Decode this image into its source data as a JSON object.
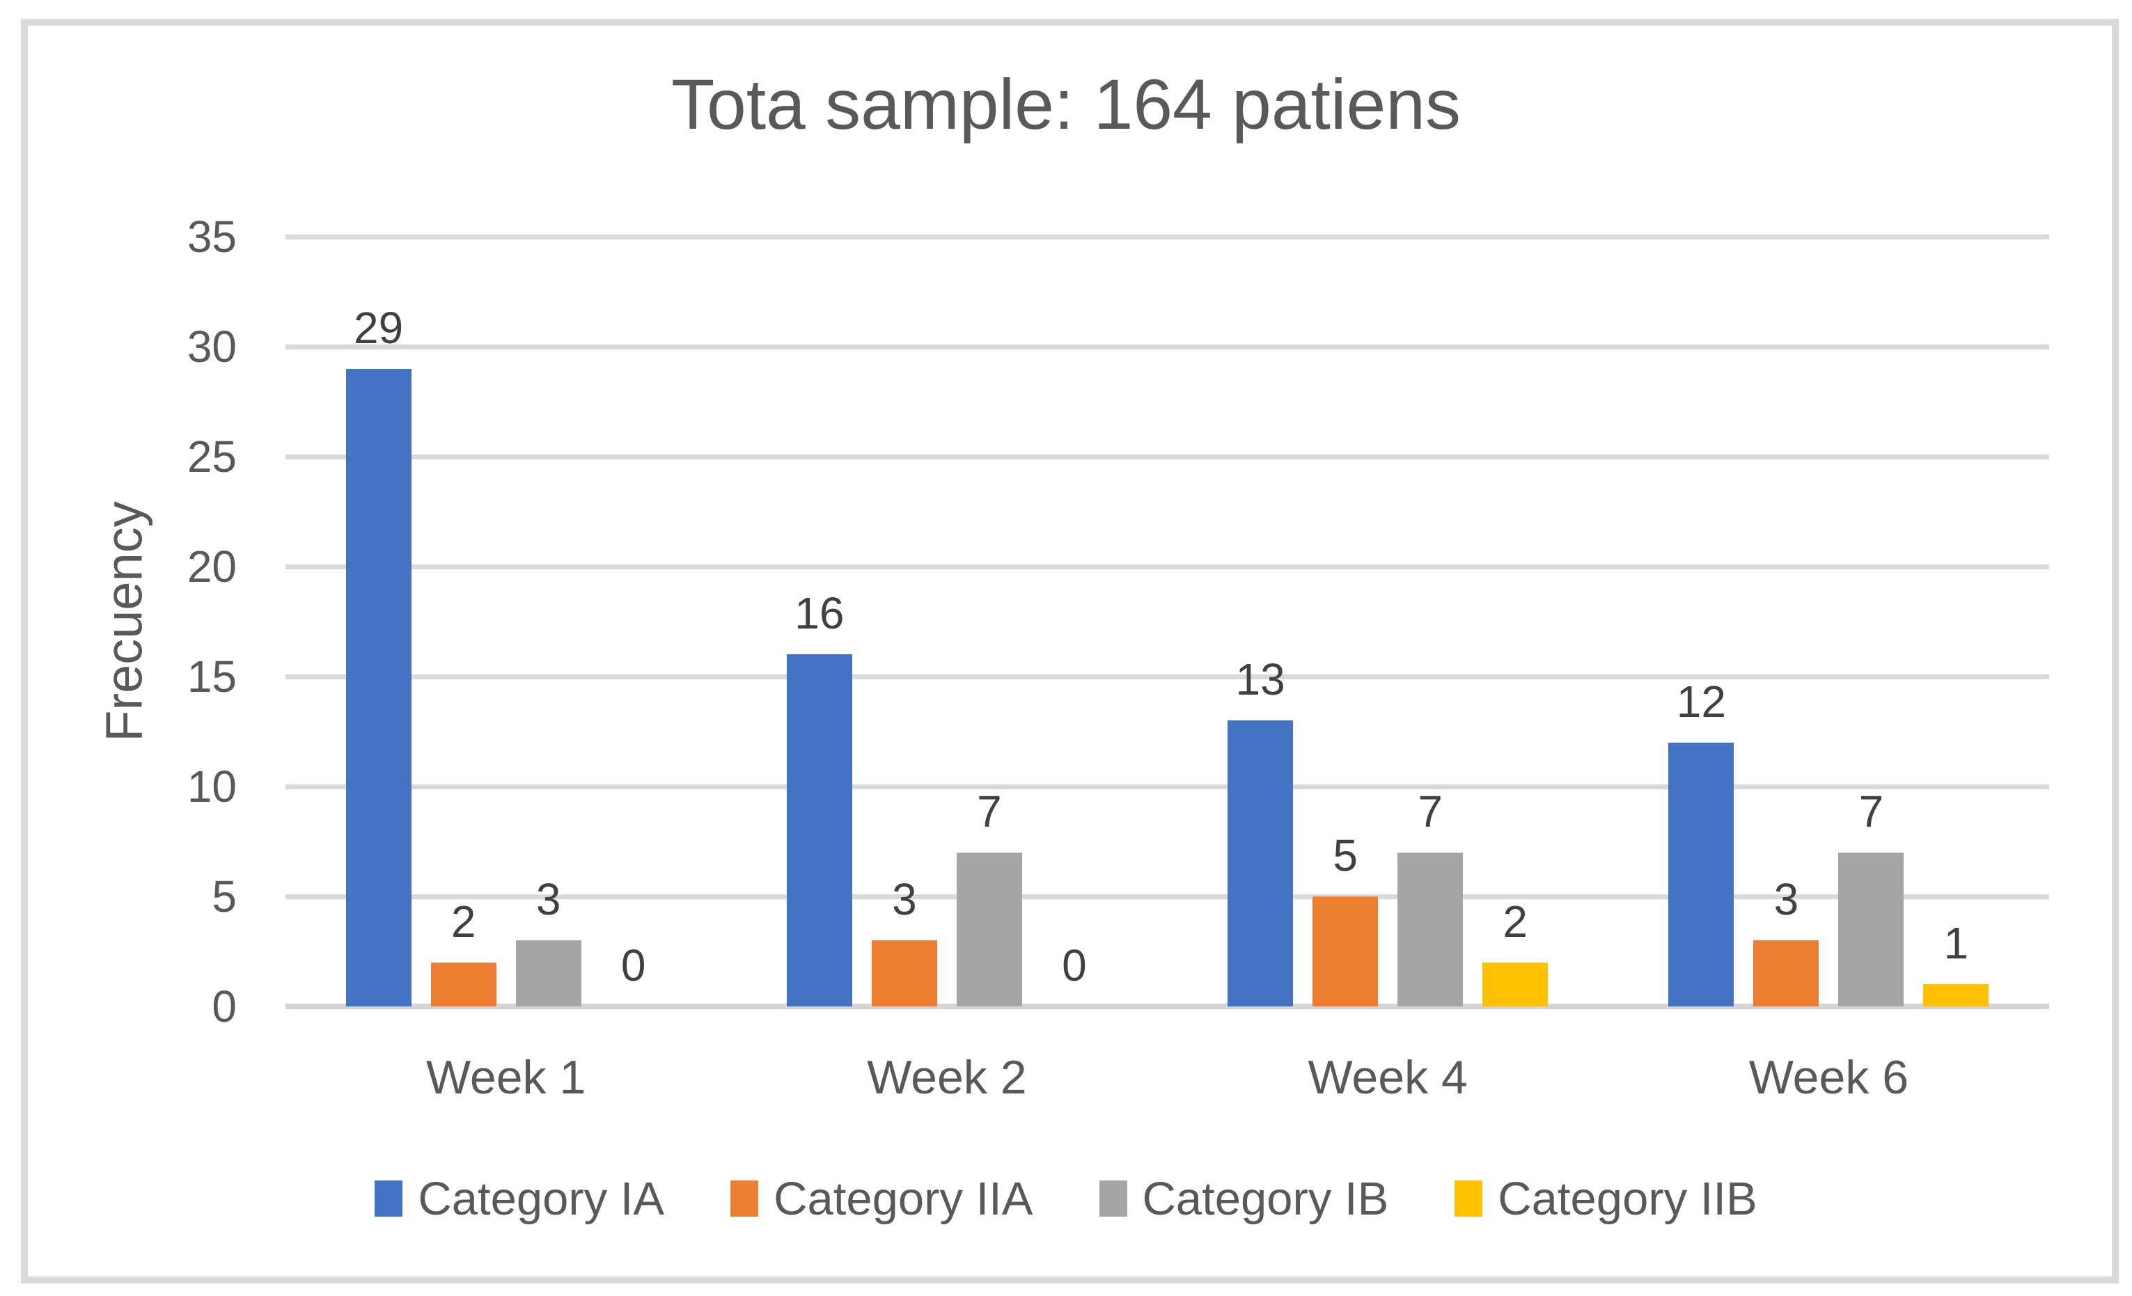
{
  "chart_data": {
    "type": "bar",
    "title": "Tota sample: 164 patiens",
    "xlabel": "",
    "ylabel": "Frecuency",
    "categories": [
      "Week 1",
      "Week 2",
      "Week 4",
      "Week 6"
    ],
    "series": [
      {
        "name": "Category IA",
        "color": "#4472C4",
        "values": [
          29,
          16,
          13,
          12
        ]
      },
      {
        "name": "Category IIA",
        "color": "#ED7D31",
        "values": [
          2,
          3,
          5,
          3
        ]
      },
      {
        "name": "Category IB",
        "color": "#A5A5A5",
        "values": [
          3,
          7,
          7,
          7
        ]
      },
      {
        "name": "Category IIB",
        "color": "#FFC000",
        "values": [
          0,
          0,
          2,
          1
        ]
      }
    ],
    "data_labels": [
      [
        "29",
        "16",
        "13",
        "12"
      ],
      [
        "2",
        "3",
        "5",
        "3"
      ],
      [
        "3",
        "7",
        "7",
        "7"
      ],
      [
        "0",
        "0",
        "2",
        "1"
      ]
    ],
    "ylim": [
      0,
      35
    ],
    "yticks": [
      0,
      5,
      10,
      15,
      20,
      25,
      30,
      35
    ],
    "ytick_labels": [
      "0",
      "5",
      "10",
      "15",
      "20",
      "25",
      "30",
      "35"
    ],
    "grid": true,
    "legend_position": "bottom",
    "legend_entries": [
      "Category IA",
      "Category IIA",
      "Category IB",
      "Category IIB"
    ]
  },
  "colors": {
    "axis_text": "#595959",
    "data_label_text": "#404040",
    "gridline": "#D9D9D9",
    "chart_border": "#D9D9D9",
    "background": "#FFFFFF"
  }
}
